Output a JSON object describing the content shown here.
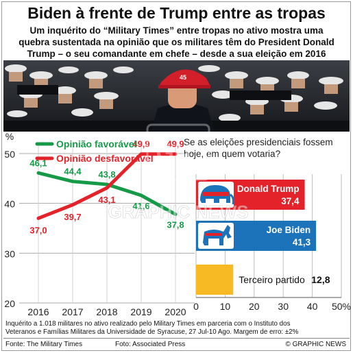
{
  "title": "Biden à frente de Trump entre as tropas",
  "subtitle_lines": [
    "Um inquérito do “Military Times” entre tropas no ativo mostra uma",
    "quebra sustentada na opinião que os militares têm do President Donald",
    "Trump – o seu comandante em chefe – desde a sua eleição em 2016"
  ],
  "photo": {
    "cap_text": "45"
  },
  "chart_data": [
    {
      "type": "line",
      "x": [
        2016,
        2017,
        2018,
        2019,
        2020
      ],
      "ylabel": "%",
      "ylim": [
        20,
        50
      ],
      "yticks": [
        20,
        30,
        40,
        50
      ],
      "grid": true,
      "legend": "top-left",
      "series": [
        {
          "name": "Opinião favorável",
          "color": "#169a48",
          "values": [
            46.1,
            44.4,
            43.8,
            41.6,
            37.8
          ],
          "labels": [
            "46,1",
            "44,4",
            "43,8",
            "41,6",
            "37,8"
          ]
        },
        {
          "name": "Opinião desfavorável",
          "color": "#e32229",
          "values": [
            37.0,
            39.7,
            43.1,
            49.9,
            49.9
          ],
          "labels": [
            "37,0",
            "39,7",
            "43,1",
            "49,9",
            "49,9"
          ]
        }
      ]
    },
    {
      "type": "bar",
      "title": "Se as eleições presidenciais fossem hoje, em quem votaria?",
      "xlim": [
        0,
        50
      ],
      "xticks": [
        0,
        10,
        20,
        30,
        40,
        50
      ],
      "xtick_labels": [
        "0",
        "10",
        "20",
        "30",
        "40",
        "50%"
      ],
      "categories": [
        "Donald Trump",
        "Joe Biden",
        "Terceiro partido"
      ],
      "values": [
        37.4,
        41.3,
        12.8
      ],
      "value_labels": [
        "37,4",
        "41,3",
        "12,8"
      ],
      "colors": [
        "#e32229",
        "#1d73ba",
        "#f7b924"
      ]
    }
  ],
  "footnote_lines": [
    "Inquérito a 1.018 militares no ativo realizado pelo Military Times em parceria com o Instituto dos",
    "Veteranos e Famílias Militares da Universidade de Syracuse, 27 Jul-10 Ago. Margem de erro: ±2%"
  ],
  "footer": {
    "source": "Fonte: The Military Times",
    "photo": "Foto: Associated Press",
    "copyright": "© GRAPHIC NEWS"
  },
  "watermark": "GRAPHIC NEWS"
}
